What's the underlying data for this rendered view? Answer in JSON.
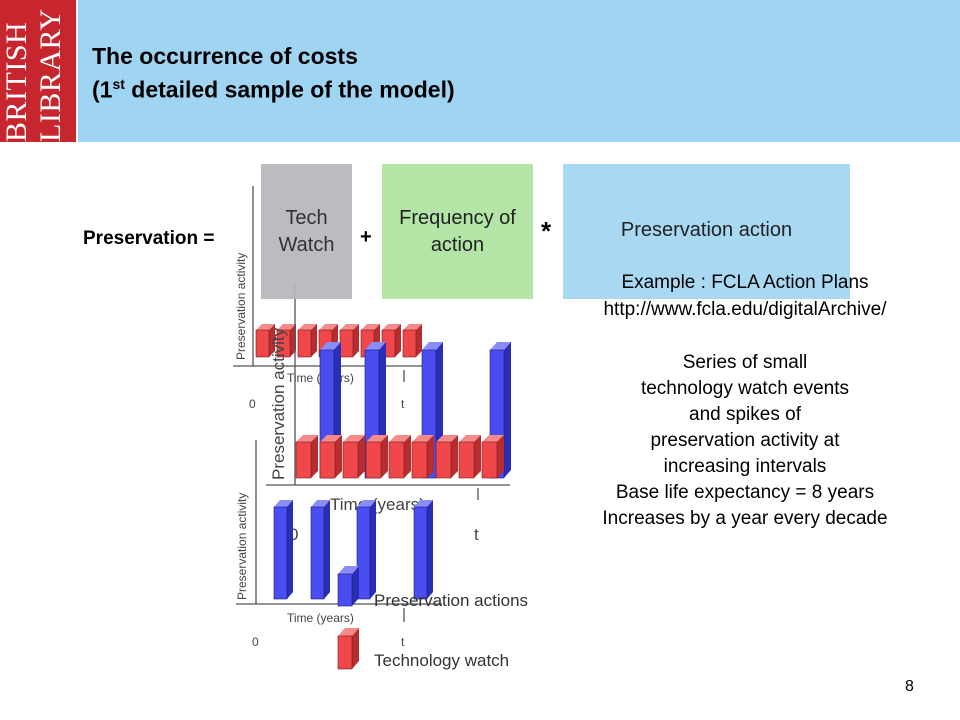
{
  "header": {
    "logo_lines": [
      "BRITISH",
      "LIBRARY"
    ],
    "title_line1": "The occurrence of costs",
    "title_line2_pre": "(1",
    "title_line2_sup": "st",
    "title_line2_post": " detailed sample of the model)",
    "colors": {
      "banner": "#9fd5f3",
      "logo": "#c7262f"
    }
  },
  "formula": {
    "lhs": "Preservation =",
    "box1": "Tech Watch",
    "plus": "+",
    "box2": "Frequency of action",
    "times": "*",
    "box3": "Preservation action",
    "colors": {
      "box1": "#b5b8bb",
      "box2": "#b2e5a6",
      "box3": "#a9d8f2"
    }
  },
  "example": {
    "line1": "Example : FCLA Action Plans",
    "line2": "http://www.fcla.edu/digitalArchive/"
  },
  "description": [
    "Series of small",
    "technology watch events",
    "and spikes of",
    "preservation activity at",
    "increasing intervals",
    "Base life expectancy = 8 years",
    "Increases by a year every decade"
  ],
  "charts": {
    "ylabel": "Preservation activity",
    "xlabel": "Time (years)",
    "origin": "0",
    "t_label": "t",
    "legend_actions": "Preservation actions",
    "legend_watch": "Technology watch",
    "colors": {
      "watch": "#f0474a",
      "action": "#4a4ef0"
    }
  },
  "page_number": "8"
}
